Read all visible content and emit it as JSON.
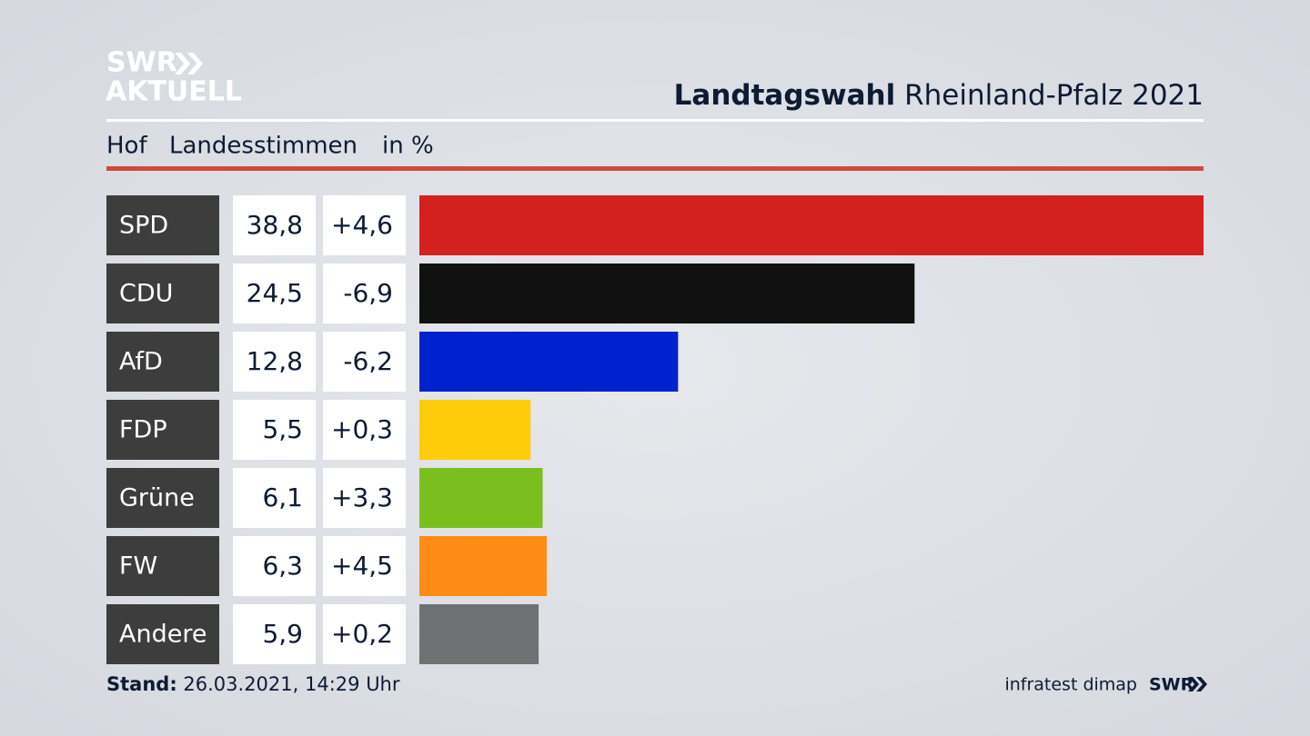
{
  "brand": {
    "line1": "SWR",
    "line2": "AKTUELL"
  },
  "chart_data": {
    "type": "bar",
    "title_bold": "Landtagswahl",
    "title": "Rheinland-Pfalz 2021",
    "region": "Hof",
    "measure": "Landesstimmen",
    "unit": "in %",
    "categories": [
      "SPD",
      "CDU",
      "AfD",
      "FDP",
      "Grüne",
      "FW",
      "Andere"
    ],
    "values": [
      38.8,
      24.5,
      12.8,
      5.5,
      6.1,
      6.3,
      5.9
    ],
    "value_labels": [
      "38,8",
      "24,5",
      "12,8",
      "5,5",
      "6,1",
      "6,3",
      "5,9"
    ],
    "changes": [
      4.6,
      -6.9,
      -6.2,
      0.3,
      3.3,
      4.5,
      0.2
    ],
    "change_labels": [
      "+4,6",
      "-6,9",
      "-6,2",
      "+0,3",
      "+3,3",
      "+4,5",
      "+0,2"
    ],
    "colors": [
      "#d52020",
      "#111111",
      "#0022cc",
      "#ffcc0a",
      "#7abf1e",
      "#ff8c16",
      "#707173"
    ]
  },
  "footer": {
    "stand_label": "Stand:",
    "stand": "26.03.2021, 14:29 Uhr",
    "source": "infratest dimap",
    "logo": "SWR"
  }
}
